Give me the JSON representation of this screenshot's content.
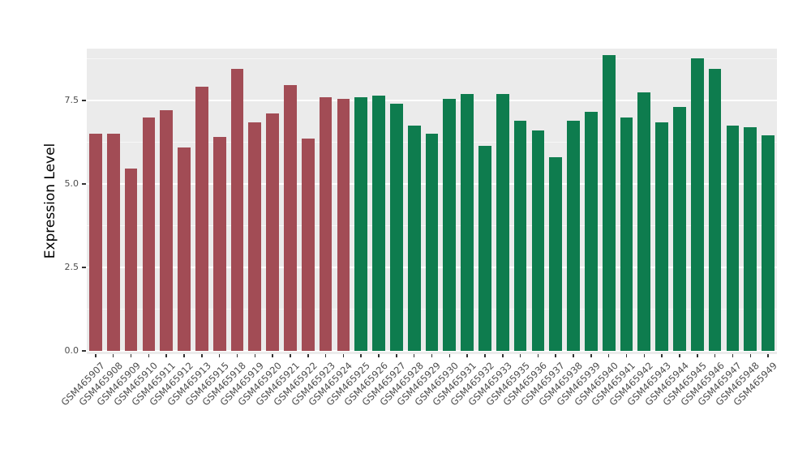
{
  "chart_data": {
    "type": "bar",
    "title": "",
    "xlabel": "",
    "ylabel": "Expression Level",
    "ylim": [
      0,
      9.05
    ],
    "yticks": [
      0,
      2.5,
      5,
      7.5
    ],
    "ytick_labels": [
      "0.0",
      "2.5",
      "5.0",
      "7.5"
    ],
    "minor_gridlines": [
      1.25,
      3.75,
      6.25,
      8.75
    ],
    "grid": true,
    "legend_position": "none",
    "x_label_angle": 45,
    "panel_bg": "#EBEBEB",
    "grid_color": "#FFFFFF",
    "tick_text_color": "#4D4D4D",
    "categories": [
      "GSM465907",
      "GSM465908",
      "GSM465909",
      "GSM465910",
      "GSM465911",
      "GSM465912",
      "GSM465913",
      "GSM465915",
      "GSM465918",
      "GSM465919",
      "GSM465920",
      "GSM465921",
      "GSM465922",
      "GSM465923",
      "GSM465924",
      "GSM465925",
      "GSM465926",
      "GSM465927",
      "GSM465928",
      "GSM465929",
      "GSM465930",
      "GSM465931",
      "GSM465932",
      "GSM465933",
      "GSM465935",
      "GSM465936",
      "GSM465937",
      "GSM465938",
      "GSM465939",
      "GSM465940",
      "GSM465941",
      "GSM465942",
      "GSM465943",
      "GSM465944",
      "GSM465945",
      "GSM465946",
      "GSM465947",
      "GSM465948",
      "GSM465949"
    ],
    "values": [
      6.5,
      6.5,
      5.45,
      7.0,
      7.2,
      6.1,
      7.9,
      6.4,
      8.45,
      6.85,
      7.1,
      7.95,
      6.35,
      7.6,
      7.55,
      7.6,
      7.65,
      7.4,
      6.75,
      6.5,
      7.55,
      7.7,
      6.15,
      7.7,
      6.9,
      6.6,
      5.8,
      6.9,
      7.15,
      8.85,
      7.0,
      7.75,
      6.85,
      7.3,
      8.75,
      8.45,
      6.75,
      6.7,
      6.45
    ],
    "groups": [
      "group1",
      "group1",
      "group1",
      "group1",
      "group1",
      "group1",
      "group1",
      "group1",
      "group1",
      "group1",
      "group1",
      "group1",
      "group1",
      "group1",
      "group1",
      "group2",
      "group2",
      "group2",
      "group2",
      "group2",
      "group2",
      "group2",
      "group2",
      "group2",
      "group2",
      "group2",
      "group2",
      "group2",
      "group2",
      "group2",
      "group2",
      "group2",
      "group2",
      "group2",
      "group2",
      "group2",
      "group2",
      "group2",
      "group2"
    ],
    "group_colors": {
      "group1": "#A24C55",
      "group2": "#0E7C4E"
    }
  }
}
